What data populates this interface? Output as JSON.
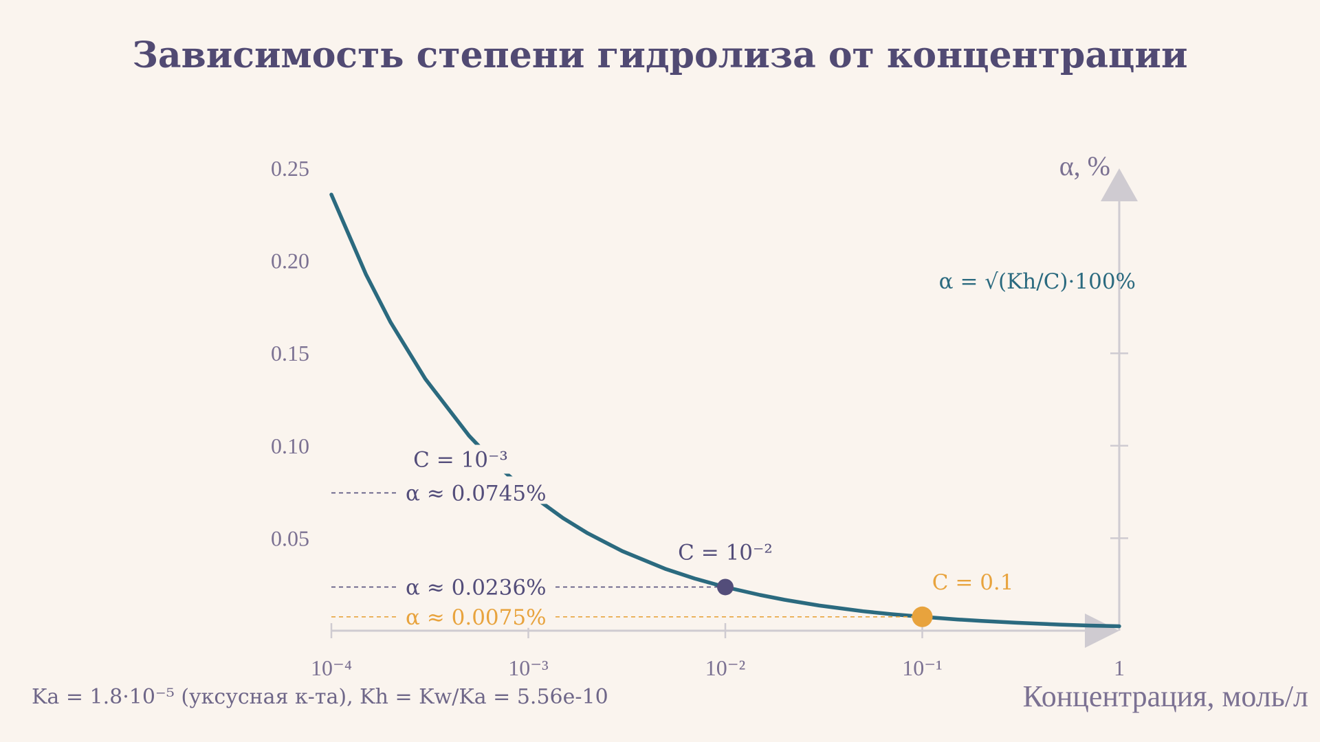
{
  "colors": {
    "background": "#faf4ee",
    "title": "#514a73",
    "axis": "#cfcbd1",
    "curve": "#2b6a7f",
    "text": "#6e6688",
    "marker_dark": "#534d7a",
    "marker_accent": "#e8a33d"
  },
  "chart_data": {
    "type": "line",
    "title": "Зависимость степени гидролиза от концентрации",
    "xlabel": "Концентрация, моль/л",
    "ylabel": "α, %",
    "x_scale": "log",
    "xlim": [
      0.0001,
      1
    ],
    "ylim": [
      0,
      0.25
    ],
    "grid": false,
    "formula": "α = √(Kh/C)·100%",
    "footnote": "Ka = 1.8·10⁻⁵ (уксусная к-та), Kh = Kw/Ka = 5.56e-10",
    "x_ticks": [
      {
        "value": 0.0001,
        "label": "10⁻⁴"
      },
      {
        "value": 0.001,
        "label": "10⁻³"
      },
      {
        "value": 0.01,
        "label": "10⁻²"
      },
      {
        "value": 0.1,
        "label": "10⁻¹"
      },
      {
        "value": 1,
        "label": "1"
      }
    ],
    "y_ticks": [
      {
        "value": 0.05,
        "label": "0.05"
      },
      {
        "value": 0.1,
        "label": "0.10"
      },
      {
        "value": 0.15,
        "label": "0.15"
      },
      {
        "value": 0.2,
        "label": "0.20"
      },
      {
        "value": 0.25,
        "label": "0.25"
      }
    ],
    "series": [
      {
        "x": [
          0.0001,
          0.00015,
          0.0002,
          0.0003,
          0.0005,
          0.0007,
          0.001,
          0.0015,
          0.002,
          0.003,
          0.005,
          0.007,
          0.01,
          0.015,
          0.02,
          0.03,
          0.05,
          0.07,
          0.1,
          0.15,
          0.2,
          0.3,
          0.5,
          0.7,
          1
        ],
        "y": [
          0.2358,
          0.1925,
          0.1667,
          0.1361,
          0.1054,
          0.0891,
          0.0745,
          0.0609,
          0.0527,
          0.043,
          0.0333,
          0.0282,
          0.0236,
          0.0193,
          0.0167,
          0.0136,
          0.0105,
          0.0089,
          0.0075,
          0.0061,
          0.0053,
          0.0043,
          0.0033,
          0.0028,
          0.0024
        ]
      }
    ],
    "points": [
      {
        "x": 0.001,
        "y": 0.0745,
        "c_label": "C = 10⁻³",
        "alpha_label": "α ≈ 0.0745%",
        "marker": false
      },
      {
        "x": 0.01,
        "y": 0.0236,
        "c_label": "C = 10⁻²",
        "alpha_label": "α ≈ 0.0236%",
        "marker": true
      },
      {
        "x": 0.1,
        "y": 0.0075,
        "c_label": "C = 0.1",
        "alpha_label": "α ≈ 0.0075%",
        "marker": true
      }
    ]
  }
}
